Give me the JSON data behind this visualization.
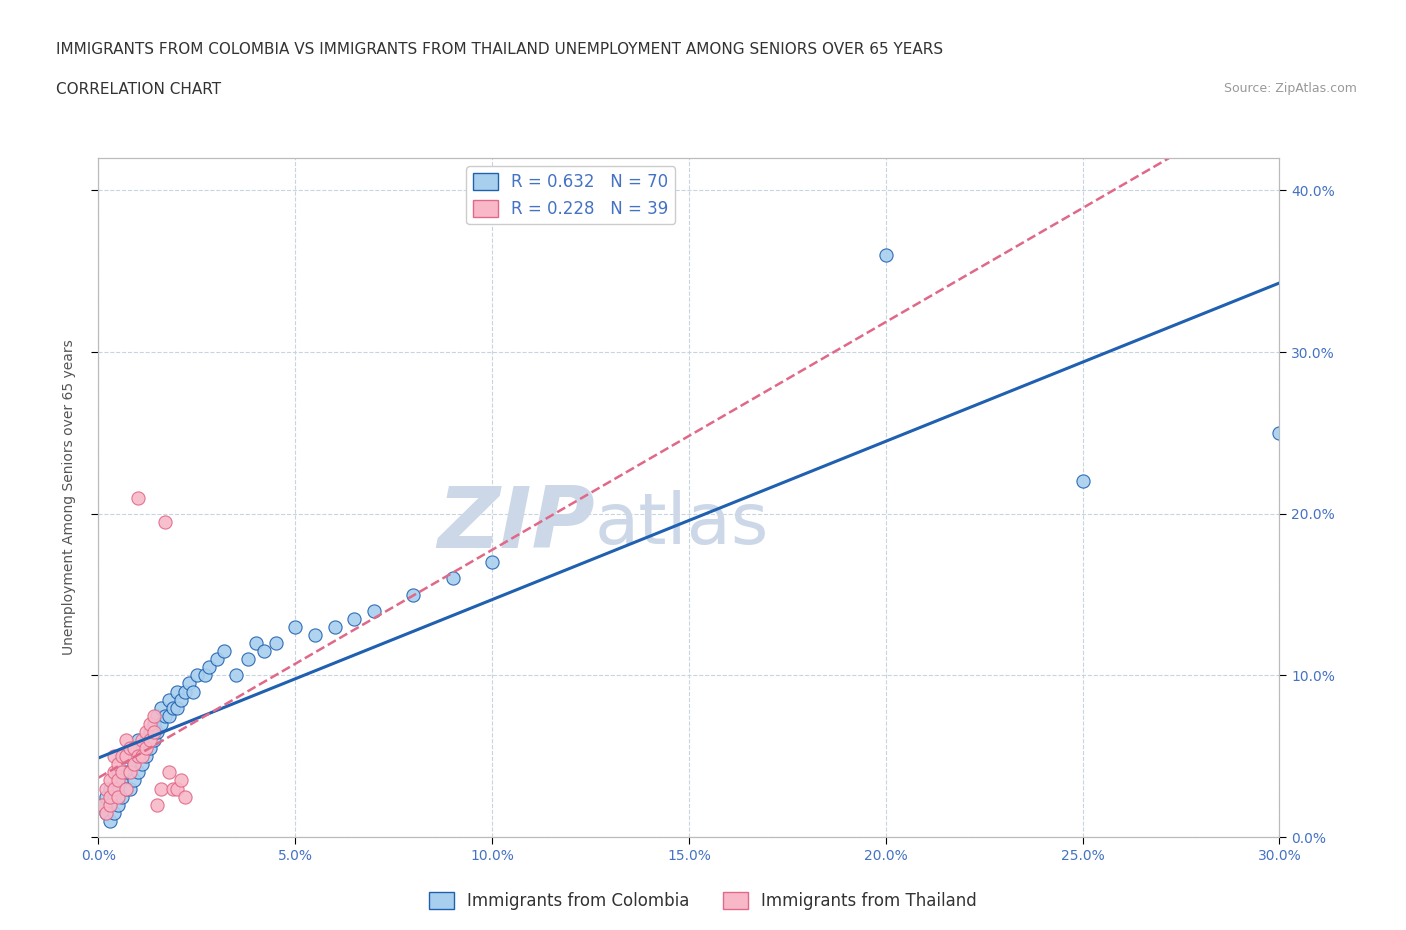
{
  "title_line1": "IMMIGRANTS FROM COLOMBIA VS IMMIGRANTS FROM THAILAND UNEMPLOYMENT AMONG SENIORS OVER 65 YEARS",
  "title_line2": "CORRELATION CHART",
  "source_text": "Source: ZipAtlas.com",
  "ylabel": "Unemployment Among Seniors over 65 years",
  "xlim": [
    0,
    0.3
  ],
  "ylim": [
    0,
    0.42
  ],
  "xticks": [
    0.0,
    0.05,
    0.1,
    0.15,
    0.2,
    0.25,
    0.3
  ],
  "yticks": [
    0.0,
    0.1,
    0.2,
    0.3,
    0.4
  ],
  "colombia_R": 0.632,
  "colombia_N": 70,
  "thailand_R": 0.228,
  "thailand_N": 39,
  "colombia_color": "#a8d0ee",
  "thailand_color": "#f8b8c8",
  "colombia_line_color": "#2060b0",
  "thailand_line_color": "#e06888",
  "watermark_zip": "ZIP",
  "watermark_atlas": "atlas",
  "watermark_color": "#ccd8e8",
  "background_color": "#ffffff",
  "grid_color": "#c8d4e0",
  "tick_color": "#4472c4",
  "colombia_scatter_x": [
    0.001,
    0.002,
    0.002,
    0.003,
    0.003,
    0.003,
    0.004,
    0.004,
    0.004,
    0.005,
    0.005,
    0.005,
    0.006,
    0.006,
    0.006,
    0.007,
    0.007,
    0.007,
    0.008,
    0.008,
    0.008,
    0.009,
    0.009,
    0.009,
    0.01,
    0.01,
    0.01,
    0.011,
    0.011,
    0.012,
    0.012,
    0.013,
    0.013,
    0.014,
    0.014,
    0.015,
    0.015,
    0.016,
    0.016,
    0.017,
    0.018,
    0.018,
    0.019,
    0.02,
    0.02,
    0.021,
    0.022,
    0.023,
    0.024,
    0.025,
    0.027,
    0.028,
    0.03,
    0.032,
    0.035,
    0.038,
    0.04,
    0.042,
    0.045,
    0.05,
    0.055,
    0.06,
    0.065,
    0.07,
    0.08,
    0.09,
    0.1,
    0.2,
    0.25,
    0.3
  ],
  "colombia_scatter_y": [
    0.02,
    0.015,
    0.025,
    0.01,
    0.02,
    0.03,
    0.015,
    0.025,
    0.03,
    0.02,
    0.03,
    0.04,
    0.025,
    0.035,
    0.04,
    0.03,
    0.04,
    0.05,
    0.03,
    0.04,
    0.05,
    0.035,
    0.045,
    0.055,
    0.04,
    0.05,
    0.06,
    0.045,
    0.055,
    0.05,
    0.06,
    0.055,
    0.065,
    0.06,
    0.07,
    0.065,
    0.075,
    0.07,
    0.08,
    0.075,
    0.075,
    0.085,
    0.08,
    0.08,
    0.09,
    0.085,
    0.09,
    0.095,
    0.09,
    0.1,
    0.1,
    0.105,
    0.11,
    0.115,
    0.1,
    0.11,
    0.12,
    0.115,
    0.12,
    0.13,
    0.125,
    0.13,
    0.135,
    0.14,
    0.15,
    0.16,
    0.17,
    0.36,
    0.22,
    0.25
  ],
  "thailand_scatter_x": [
    0.001,
    0.002,
    0.002,
    0.003,
    0.003,
    0.003,
    0.004,
    0.004,
    0.004,
    0.005,
    0.005,
    0.005,
    0.006,
    0.006,
    0.007,
    0.007,
    0.007,
    0.008,
    0.008,
    0.009,
    0.009,
    0.01,
    0.01,
    0.011,
    0.011,
    0.012,
    0.012,
    0.013,
    0.013,
    0.014,
    0.014,
    0.015,
    0.016,
    0.017,
    0.018,
    0.019,
    0.02,
    0.021,
    0.022
  ],
  "thailand_scatter_y": [
    0.02,
    0.015,
    0.03,
    0.02,
    0.025,
    0.035,
    0.03,
    0.04,
    0.05,
    0.025,
    0.035,
    0.045,
    0.04,
    0.05,
    0.03,
    0.05,
    0.06,
    0.04,
    0.055,
    0.045,
    0.055,
    0.05,
    0.21,
    0.05,
    0.06,
    0.055,
    0.065,
    0.06,
    0.07,
    0.065,
    0.075,
    0.02,
    0.03,
    0.195,
    0.04,
    0.03,
    0.03,
    0.035,
    0.025
  ],
  "title_fontsize": 11,
  "axis_label_fontsize": 10,
  "tick_fontsize": 10,
  "legend_fontsize": 12,
  "source_fontsize": 9
}
